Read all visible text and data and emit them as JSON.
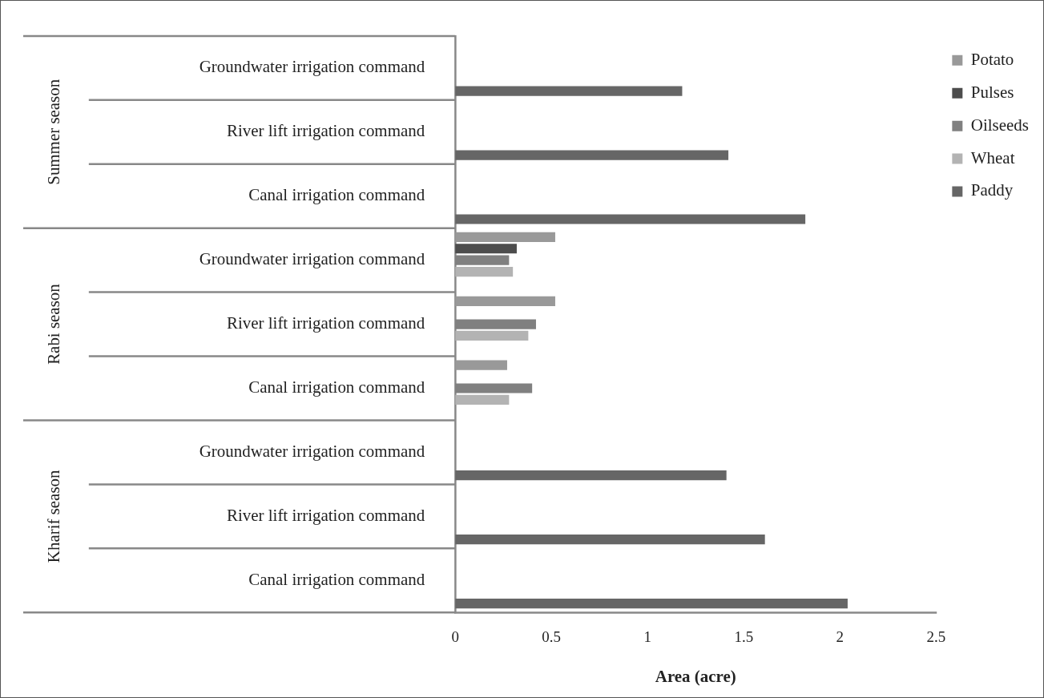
{
  "chart_data": {
    "type": "bar",
    "orientation": "horizontal",
    "xlabel": "Area (acre)",
    "categories": [
      "Groundwater irrigation command",
      "River lift irrigation command",
      "Canal irrigation command",
      "Groundwater irrigation command",
      "River lift irrigation command",
      "Canal irrigation command",
      "Groundwater irrigation command",
      "River lift irrigation command",
      "Canal irrigation command"
    ],
    "annotations": [
      "Summer season",
      "Rabi season",
      "Kharif season"
    ],
    "series": [
      {
        "name": "Potato",
        "color": "#999999",
        "values": [
          null,
          null,
          null,
          0.52,
          0.52,
          0.27,
          null,
          null,
          null
        ]
      },
      {
        "name": "Pulses",
        "color": "#4d4d4d",
        "values": [
          null,
          null,
          null,
          0.32,
          null,
          null,
          null,
          null,
          null
        ]
      },
      {
        "name": "Oilseeds",
        "color": "#808080",
        "values": [
          null,
          null,
          null,
          0.28,
          0.42,
          0.4,
          null,
          null,
          null
        ]
      },
      {
        "name": "Wheat",
        "color": "#b3b3b3",
        "values": [
          null,
          null,
          null,
          0.3,
          0.38,
          0.28,
          null,
          null,
          null
        ]
      },
      {
        "name": "Paddy",
        "color": "#666666",
        "values": [
          1.18,
          1.42,
          1.82,
          null,
          null,
          null,
          1.41,
          1.61,
          2.04
        ]
      }
    ],
    "xlim": [
      0,
      2.5
    ],
    "xticks": [
      0,
      0.5,
      1,
      1.5,
      2,
      2.5
    ],
    "grid": false,
    "legend": "right"
  }
}
